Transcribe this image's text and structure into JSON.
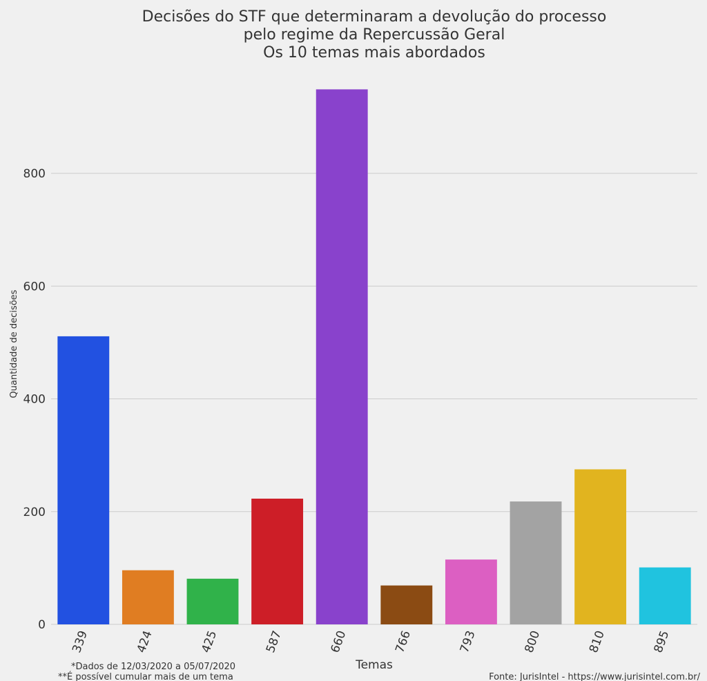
{
  "title_lines": [
    "Decisões do STF que determinaram a devolução do processo",
    "pelo regime da Repercussão Geral",
    "Os 10 temas mais abordados"
  ],
  "footnotes": {
    "dates": "*Dados de 12/03/2020 a 05/07/2020",
    "cumulative": "**É possível cumular mais de um tema",
    "source": "Fonte: JurisIntel - https://www.jurisintel.com.br/"
  },
  "colors": {
    "background": "#f0f0f0",
    "grid": "#cbcbcb"
  },
  "chart_data": {
    "type": "bar",
    "title": "Decisões do STF que determinaram a devolução do processo pelo regime da Repercussão Geral Os 10 temas mais abordados",
    "xlabel": "Temas",
    "ylabel": "Quantidade de decisões",
    "categories": [
      "339",
      "424",
      "425",
      "587",
      "660",
      "766",
      "793",
      "800",
      "810",
      "895"
    ],
    "values": [
      511,
      96,
      81,
      223,
      949,
      69,
      115,
      218,
      275,
      101
    ],
    "colors": [
      "#2251e1",
      "#e07d22",
      "#30b24a",
      "#cd1e27",
      "#8942cc",
      "#8b4b13",
      "#dc5fc2",
      "#a3a3a3",
      "#e1b41f",
      "#20c3df"
    ],
    "yticks": [
      0,
      200,
      400,
      600,
      800
    ],
    "ylim": [
      0,
      990
    ],
    "grid": true,
    "legend": "none"
  }
}
